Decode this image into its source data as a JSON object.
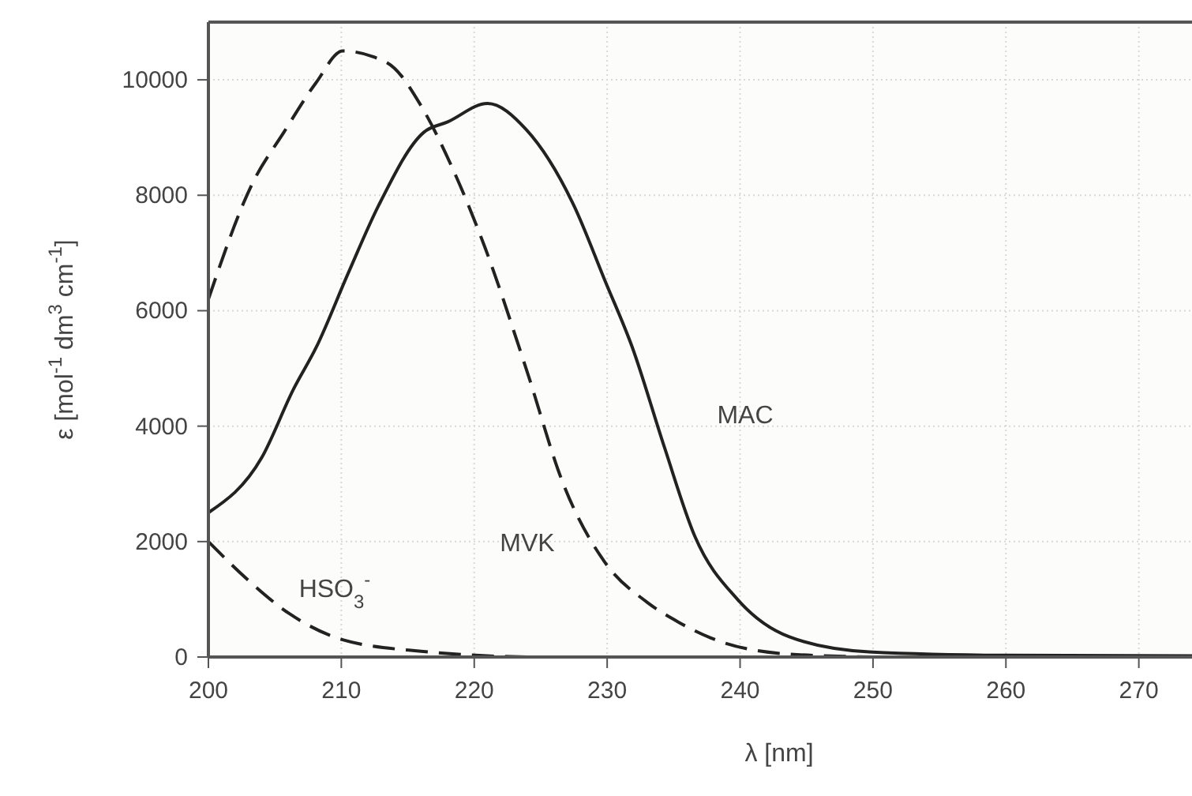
{
  "chart_data": {
    "type": "line",
    "xlabel": "λ [nm]",
    "ylabel": "ε [mol$^{-1}$ dm$^{3}$ cm$^{-1}$]",
    "xlim": [
      200,
      274
    ],
    "xticks": [
      200,
      210,
      220,
      230,
      240,
      250,
      260,
      270
    ],
    "ylim": [
      0,
      11000
    ],
    "yticks": [
      0,
      2000,
      4000,
      6000,
      8000,
      10000
    ],
    "grid": true,
    "marker": "none",
    "series": [
      {
        "name": "MAC",
        "color": "#222222",
        "line_style": "solid",
        "x": [
          200,
          204,
          206.4,
          208.1,
          210.5,
          212.8,
          216.2,
          218,
          221,
          223.9,
          227.5,
          229.8,
          231.9,
          234.3,
          236.6,
          239.8,
          243.7,
          249.7,
          260,
          274
        ],
        "values": [
          2500,
          3450,
          4640,
          5360,
          6640,
          7820,
          9090,
          9270,
          9590,
          9140,
          7820,
          6540,
          5360,
          3640,
          2090,
          1000,
          350,
          90,
          30,
          20
        ]
      },
      {
        "name": "MVK",
        "color": "#222222",
        "line_style": "dashed",
        "x": [
          200,
          203.3,
          205.7,
          208.1,
          210.1,
          212.4,
          214,
          216,
          218.4,
          220.8,
          223.9,
          226.7,
          229.8,
          233,
          235.4,
          237.8,
          243.7,
          250
        ],
        "values": [
          6200,
          8200,
          9100,
          9950,
          10500,
          10400,
          10200,
          9550,
          8450,
          7100,
          5000,
          3000,
          1650,
          950,
          600,
          330,
          50,
          0
        ]
      },
      {
        "name": "HSO$_{3}$$^{-}$",
        "color": "#222222",
        "line_style": "dashed",
        "x": [
          200,
          202.9,
          206.1,
          210.1,
          216,
          225,
          274
        ],
        "values": [
          2000,
          1350,
          750,
          300,
          100,
          0,
          0
        ]
      }
    ]
  }
}
